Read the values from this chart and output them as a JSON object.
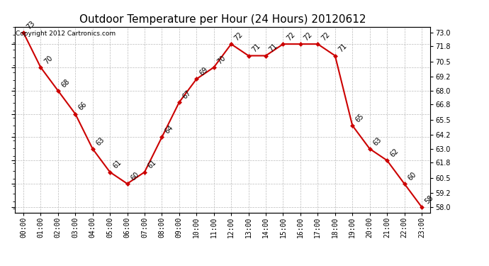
{
  "title": "Outdoor Temperature per Hour (24 Hours) 20120612",
  "copyright": "Copyright 2012 Cartronics.com",
  "hours": [
    "00:00",
    "01:00",
    "02:00",
    "03:00",
    "04:00",
    "05:00",
    "06:00",
    "07:00",
    "08:00",
    "09:00",
    "10:00",
    "11:00",
    "12:00",
    "13:00",
    "14:00",
    "15:00",
    "16:00",
    "17:00",
    "18:00",
    "19:00",
    "20:00",
    "21:00",
    "22:00",
    "23:00"
  ],
  "temps": [
    73,
    70,
    68,
    66,
    63,
    61,
    60,
    61,
    64,
    67,
    69,
    70,
    72,
    71,
    71,
    72,
    72,
    72,
    71,
    65,
    63,
    62,
    60,
    58
  ],
  "ylim": [
    57.5,
    73.5
  ],
  "yticks_right": [
    58.0,
    59.2,
    60.5,
    61.8,
    63.0,
    64.2,
    65.5,
    66.8,
    68.0,
    69.2,
    70.5,
    71.8,
    73.0
  ],
  "line_color": "#cc0000",
  "marker_color": "#cc0000",
  "bg_color": "#ffffff",
  "grid_color": "#bbbbbb",
  "title_fontsize": 11,
  "annotation_fontsize": 7,
  "tick_fontsize": 7,
  "copyright_fontsize": 6.5
}
